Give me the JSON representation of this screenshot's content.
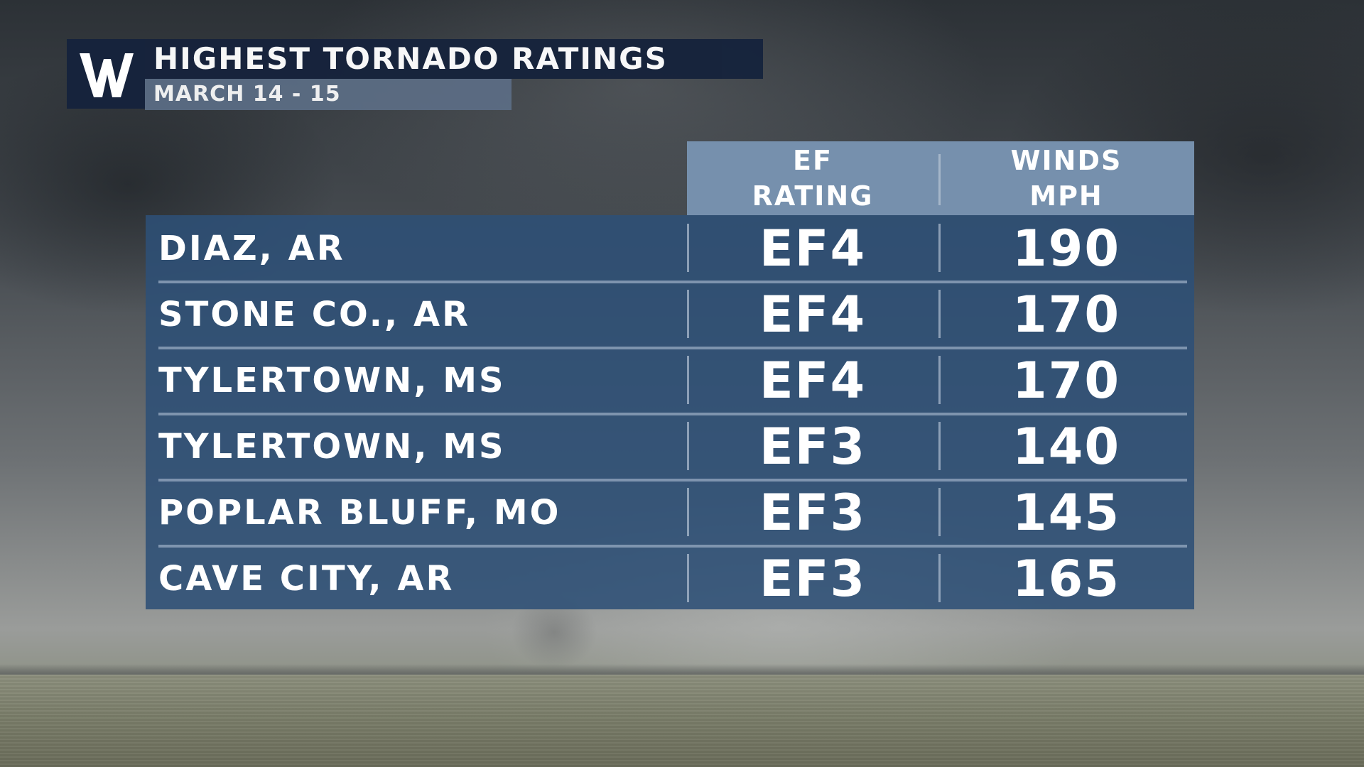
{
  "header": {
    "logo_letter": "W",
    "title": "HIGHEST TORNADO RATINGS",
    "subtitle": "MARCH 14 - 15"
  },
  "table": {
    "columns": [
      {
        "line1": "EF",
        "line2": "RATING"
      },
      {
        "line1": "WINDS",
        "line2": "MPH"
      }
    ],
    "rows": [
      {
        "location": "DIAZ, AR",
        "ef": "EF4",
        "winds": "190"
      },
      {
        "location": "STONE CO., AR",
        "ef": "EF4",
        "winds": "170"
      },
      {
        "location": "TYLERTOWN, MS",
        "ef": "EF4",
        "winds": "170"
      },
      {
        "location": "TYLERTOWN, MS",
        "ef": "EF3",
        "winds": "140"
      },
      {
        "location": "POPLAR BLUFF, MO",
        "ef": "EF3",
        "winds": "145"
      },
      {
        "location": "CAVE CITY, AR",
        "ef": "EF3",
        "winds": "165"
      }
    ]
  },
  "colors": {
    "header_bar": "#16233c",
    "subtitle_bar": "#5c6e86",
    "table_head": "#7690ad",
    "table_body": "#2d5076"
  }
}
